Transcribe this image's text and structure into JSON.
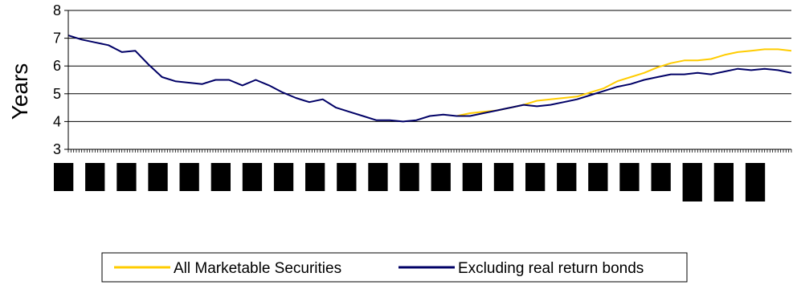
{
  "chart_data": {
    "type": "line",
    "title": "",
    "xlabel": "",
    "ylabel": "Years",
    "ylim": [
      3,
      8
    ],
    "yticks": [
      3,
      4,
      5,
      6,
      7,
      8
    ],
    "grid": "horizontal",
    "legend_position": "bottom",
    "x_period_count": 23,
    "x": [
      0,
      5,
      10,
      15,
      20,
      25,
      30,
      35,
      40,
      45,
      50,
      55,
      60,
      65,
      70,
      75,
      80,
      85,
      90,
      95,
      100,
      105,
      110,
      115,
      120,
      125,
      130,
      135,
      140,
      145,
      150,
      155,
      160,
      165,
      170,
      175,
      180,
      185,
      190,
      195,
      200,
      205,
      210,
      215,
      220,
      225,
      230,
      235,
      240,
      245,
      250,
      255,
      260,
      265,
      270
    ],
    "series": [
      {
        "name": "All Marketable Securities",
        "color": "#FFCC00",
        "start_index": 29,
        "values": [
          null,
          null,
          null,
          null,
          null,
          null,
          null,
          null,
          null,
          null,
          null,
          null,
          null,
          null,
          null,
          null,
          null,
          null,
          null,
          null,
          null,
          null,
          null,
          null,
          null,
          null,
          null,
          null,
          null,
          4.2,
          4.3,
          4.35,
          4.4,
          4.5,
          4.6,
          4.75,
          4.8,
          4.85,
          4.9,
          5.05,
          5.2,
          5.45,
          5.6,
          5.75,
          5.95,
          6.1,
          6.2,
          6.2,
          6.25,
          6.4,
          6.5,
          6.55,
          6.6,
          6.6,
          6.55
        ]
      },
      {
        "name": "Excluding real return bonds",
        "color": "#000066",
        "start_index": 0,
        "values": [
          7.1,
          6.95,
          6.85,
          6.75,
          6.5,
          6.55,
          6.05,
          5.6,
          5.45,
          5.4,
          5.35,
          5.5,
          5.5,
          5.3,
          5.5,
          5.3,
          5.05,
          4.85,
          4.7,
          4.8,
          4.5,
          4.35,
          4.2,
          4.05,
          4.05,
          4.0,
          4.05,
          4.2,
          4.25,
          4.2,
          4.2,
          4.3,
          4.4,
          4.5,
          4.6,
          4.55,
          4.6,
          4.7,
          4.8,
          4.95,
          5.1,
          5.25,
          5.35,
          5.5,
          5.6,
          5.7,
          5.7,
          5.75,
          5.7,
          5.8,
          5.9,
          5.85,
          5.9,
          5.85,
          5.75
        ]
      }
    ]
  }
}
